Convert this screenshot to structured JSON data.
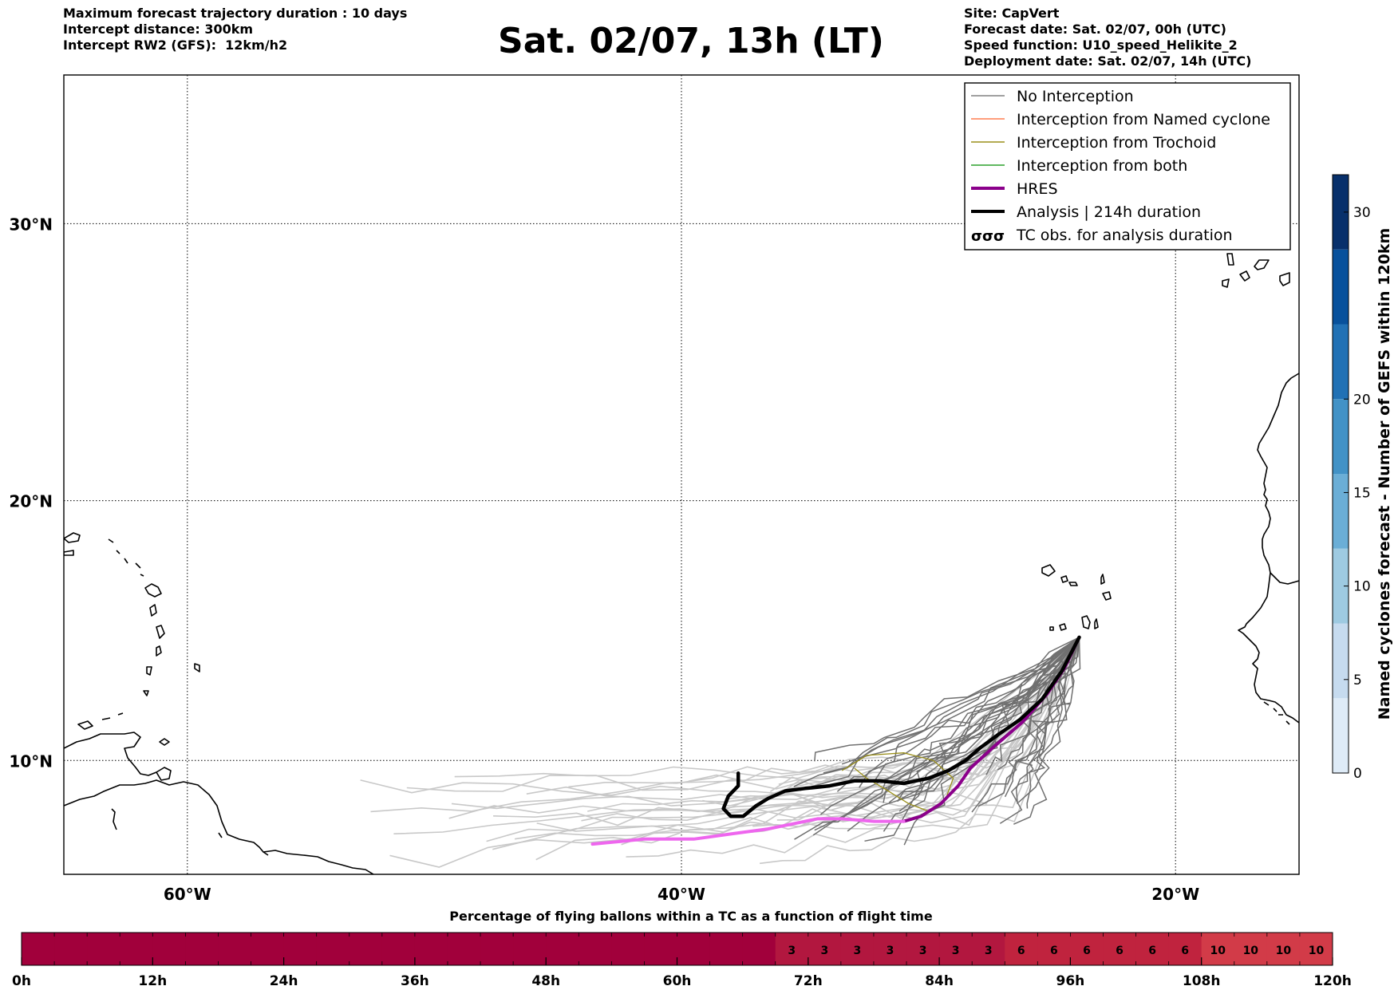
{
  "header": {
    "left_lines": [
      "Maximum forecast trajectory duration : 10 days",
      "Intercept distance: 300km",
      "Intercept RW2 (GFS):  12km/h2"
    ],
    "title": "Sat. 02/07, 13h (LT)",
    "right_lines": [
      "Site: CapVert",
      "Forecast date: Sat. 02/07, 00h (UTC)",
      "Speed function: U10_speed_Helikite_2",
      "Deployment date: Sat. 02/07, 14h (UTC)"
    ]
  },
  "map": {
    "lon_range": [
      -65,
      -15
    ],
    "lat_range": [
      5.5,
      35
    ],
    "lon_ticks": [
      {
        "value": -60,
        "label": "60°W"
      },
      {
        "value": -40,
        "label": "40°W"
      },
      {
        "value": -20,
        "label": "20°W"
      }
    ],
    "lat_ticks": [
      {
        "value": 30,
        "label": "30°N"
      },
      {
        "value": 20,
        "label": "20°N"
      },
      {
        "value": 10,
        "label": "10°N"
      }
    ],
    "grid": true
  },
  "legend": {
    "position": "top-right",
    "items": [
      {
        "label": "No Interception",
        "color": "#808080",
        "style": "thin"
      },
      {
        "label": "Interception from Named cyclone",
        "color": "#ff7f50",
        "style": "thin"
      },
      {
        "label": "Interception from Trochoid",
        "color": "#9a8f1a",
        "style": "thin"
      },
      {
        "label": "Interception from both",
        "color": "#2ca02c",
        "style": "thin"
      },
      {
        "label": "HRES",
        "color": "#8b008b",
        "style": "thick"
      },
      {
        "label": "Analysis | 214h duration",
        "color": "#000000",
        "style": "thick"
      },
      {
        "label": "TC obs. for analysis duration",
        "color": "#000000",
        "style": "symbol"
      }
    ]
  },
  "colorbar_right": {
    "label": "Named cyclones forecast - Number of GEFS within 120km",
    "min": 0,
    "max": 32,
    "ticks": [
      0,
      5,
      10,
      15,
      20,
      30
    ],
    "colors": [
      "#deebf7",
      "#c6dbef",
      "#9ecae1",
      "#6baed6",
      "#4292c6",
      "#2171b5",
      "#08519c",
      "#08306b"
    ]
  },
  "colorbar_bottom": {
    "title": "Percentage of flying ballons within a TC as a function of flight time",
    "tick_labels": [
      "0h",
      "12h",
      "24h",
      "36h",
      "48h",
      "60h",
      "72h",
      "84h",
      "96h",
      "108h",
      "120h"
    ],
    "hours_per_cell": 3,
    "cells": [
      0,
      0,
      0,
      0,
      0,
      0,
      0,
      0,
      0,
      0,
      0,
      0,
      0,
      0,
      0,
      0,
      0,
      0,
      0,
      0,
      0,
      0,
      0,
      3,
      3,
      3,
      3,
      3,
      3,
      3,
      6,
      6,
      6,
      6,
      6,
      6,
      10,
      10,
      10,
      10
    ],
    "colors": {
      "0": "#a1003b",
      "3": "#b2173f",
      "6": "#c0233e",
      "10": "#d23b48"
    }
  },
  "tracks": {
    "site": {
      "lon": -23.9,
      "lat": 14.8
    },
    "hres": {
      "color": "#8b008b",
      "early_color": "#ee66ee",
      "points": [
        [
          -23.9,
          14.8
        ],
        [
          -24.5,
          13.6
        ],
        [
          -25.2,
          12.6
        ],
        [
          -26.2,
          11.5
        ],
        [
          -27.4,
          10.5
        ],
        [
          -28.3,
          9.7
        ],
        [
          -28.8,
          9.0
        ],
        [
          -29.5,
          8.3
        ],
        [
          -30.3,
          7.8
        ],
        [
          -31.0,
          7.6
        ],
        [
          -32.2,
          7.6
        ],
        [
          -33.5,
          7.7
        ],
        [
          -34.5,
          7.7
        ],
        [
          -35.5,
          7.5
        ],
        [
          -36.5,
          7.3
        ],
        [
          -38.0,
          7.1
        ],
        [
          -39.5,
          6.9
        ],
        [
          -40.5,
          6.9
        ],
        [
          -41.5,
          6.9
        ],
        [
          -42.5,
          6.8
        ],
        [
          -43.6,
          6.7
        ]
      ],
      "split_index": 9
    },
    "analysis": {
      "color": "#000000",
      "points": [
        [
          -23.9,
          14.8
        ],
        [
          -24.6,
          13.5
        ],
        [
          -25.4,
          12.4
        ],
        [
          -26.3,
          11.6
        ],
        [
          -27.2,
          11.0
        ],
        [
          -27.9,
          10.5
        ],
        [
          -28.5,
          10.0
        ],
        [
          -29.2,
          9.6
        ],
        [
          -30.0,
          9.3
        ],
        [
          -31.0,
          9.1
        ],
        [
          -32.0,
          9.2
        ],
        [
          -33.0,
          9.2
        ],
        [
          -34.0,
          9.0
        ],
        [
          -35.0,
          8.9
        ],
        [
          -35.8,
          8.8
        ],
        [
          -36.5,
          8.5
        ],
        [
          -37.0,
          8.2
        ],
        [
          -37.5,
          7.8
        ],
        [
          -38.0,
          7.8
        ],
        [
          -38.3,
          8.1
        ],
        [
          -38.1,
          8.6
        ],
        [
          -37.7,
          9.0
        ],
        [
          -37.7,
          9.5
        ]
      ]
    }
  }
}
